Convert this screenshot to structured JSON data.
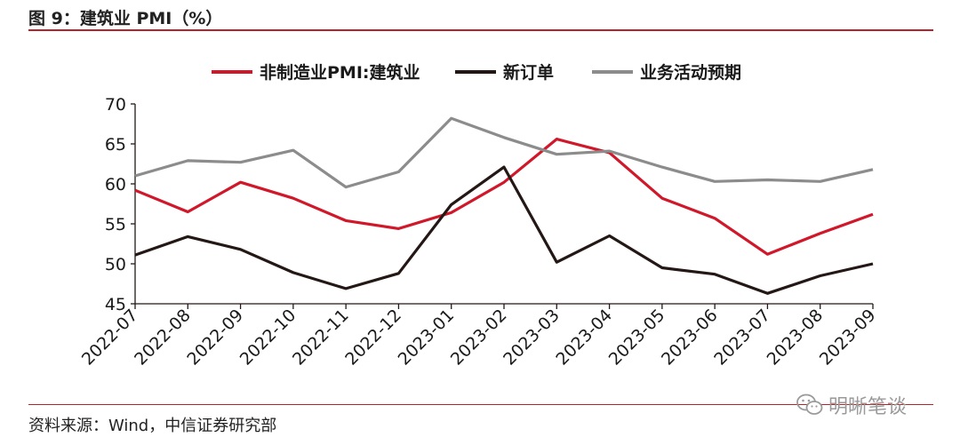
{
  "figure": {
    "title": "图 9：建筑业 PMI（%）",
    "source": "资料来源：Wind，中信证券研究部",
    "watermark": "明晰笔谈"
  },
  "colors": {
    "rule": "#b8202a",
    "series": [
      "#d0182a",
      "#231815",
      "#8c8c8c"
    ],
    "axis": "#231815"
  },
  "chart_data": {
    "type": "line",
    "title": "图 9：建筑业 PMI（%）",
    "xlabel": "",
    "ylabel": "",
    "ylim": [
      45,
      70
    ],
    "yticks": [
      45,
      50,
      55,
      60,
      65,
      70
    ],
    "grid": false,
    "legend_position": "top",
    "categories": [
      "2022-07",
      "2022-08",
      "2022-09",
      "2022-10",
      "2022-11",
      "2022-12",
      "2023-01",
      "2023-02",
      "2023-03",
      "2023-04",
      "2023-05",
      "2023-06",
      "2023-07",
      "2023-08",
      "2023-09"
    ],
    "series": [
      {
        "name": "非制造业PMI:建筑业",
        "values": [
          59.2,
          56.5,
          60.2,
          58.2,
          55.4,
          54.4,
          56.4,
          60.2,
          65.6,
          63.9,
          58.2,
          55.7,
          51.2,
          53.8,
          56.2
        ]
      },
      {
        "name": "新订单",
        "values": [
          51.1,
          53.4,
          51.8,
          48.9,
          46.9,
          48.8,
          57.4,
          62.1,
          50.2,
          53.5,
          49.5,
          48.7,
          46.3,
          48.5,
          50.0
        ]
      },
      {
        "name": "业务活动预期",
        "values": [
          61.0,
          62.9,
          62.7,
          64.2,
          59.6,
          61.5,
          68.2,
          65.8,
          63.7,
          64.1,
          62.1,
          60.3,
          60.5,
          60.3,
          61.8
        ]
      }
    ]
  }
}
